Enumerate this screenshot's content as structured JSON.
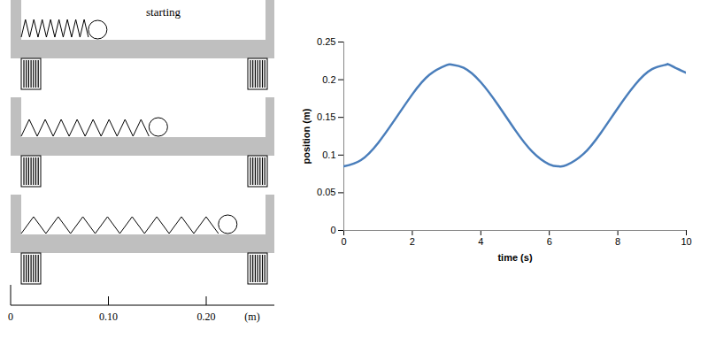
{
  "chart_data": {
    "type": "line",
    "xlabel": "time (s)",
    "ylabel": "position (m)",
    "x": [
      0,
      0.5,
      1,
      1.5,
      2,
      2.5,
      3,
      3.14,
      3.5,
      4,
      4.5,
      5,
      5.5,
      6,
      6.28,
      6.5,
      7,
      7.5,
      8,
      8.5,
      9,
      9.42,
      9.5,
      10
    ],
    "values": [
      0.085,
      0.0933,
      0.116,
      0.1477,
      0.1806,
      0.2066,
      0.2193,
      0.22,
      0.2157,
      0.1966,
      0.1667,
      0.1334,
      0.1047,
      0.0877,
      0.085,
      0.0866,
      0.1016,
      0.1291,
      0.1623,
      0.1931,
      0.214,
      0.22,
      0.2198,
      0.2091
    ],
    "color": "#4a7ebb",
    "xlim": [
      0,
      10
    ],
    "xticks": [
      0,
      2,
      4,
      6,
      8,
      10
    ],
    "ylim": [
      0,
      0.25
    ],
    "yticks": [
      0,
      0.05,
      0.1,
      0.15,
      0.2,
      0.25
    ],
    "grid": false
  },
  "diagram": {
    "label": "starting",
    "ruler_ticks": [
      0,
      {
        "value": 0.1,
        "label": "0.10"
      },
      {
        "value": 0.2,
        "label": "0.20"
      }
    ],
    "ruler_unit": "(m)",
    "mass_positions": [
      0.089,
      0.151,
      0.222
    ]
  }
}
